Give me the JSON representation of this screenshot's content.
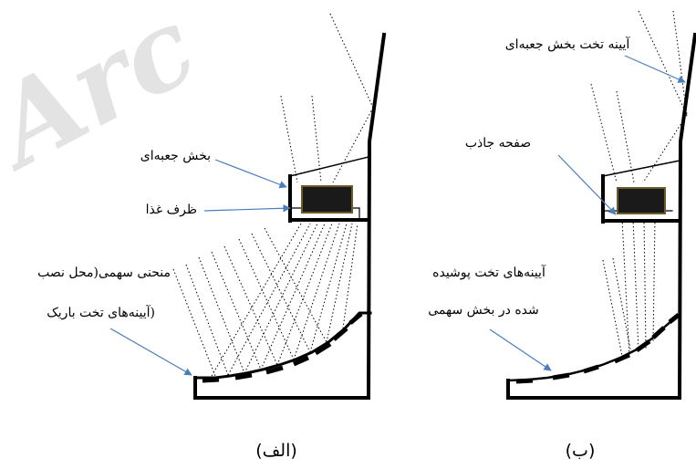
{
  "watermark": "Arc",
  "panel_a": {
    "caption": "(الف)",
    "label_box_section": "بخش جعبه‌ای",
    "label_food_container": "ظرف غذا",
    "label_parabolic_line1": "منحنی سهمی(محل نصب",
    "label_parabolic_line2": "آیینه‌های تخت باریک)"
  },
  "panel_b": {
    "caption": "(ب)",
    "label_flat_mirror": "آیینه تخت بخش جعبه‌ای",
    "label_absorber_plate": "صفحه جاذب",
    "label_covered_line1": "آیینه‌های تخت پوشیده",
    "label_covered_line2": "شده در بخش سهمی"
  },
  "colors": {
    "structure": "#000000",
    "arrow": "#4a7ebb",
    "food_box": "#1a1a1a",
    "food_box_edge": "#6b5a2a",
    "watermark": "#e3e3e3"
  }
}
